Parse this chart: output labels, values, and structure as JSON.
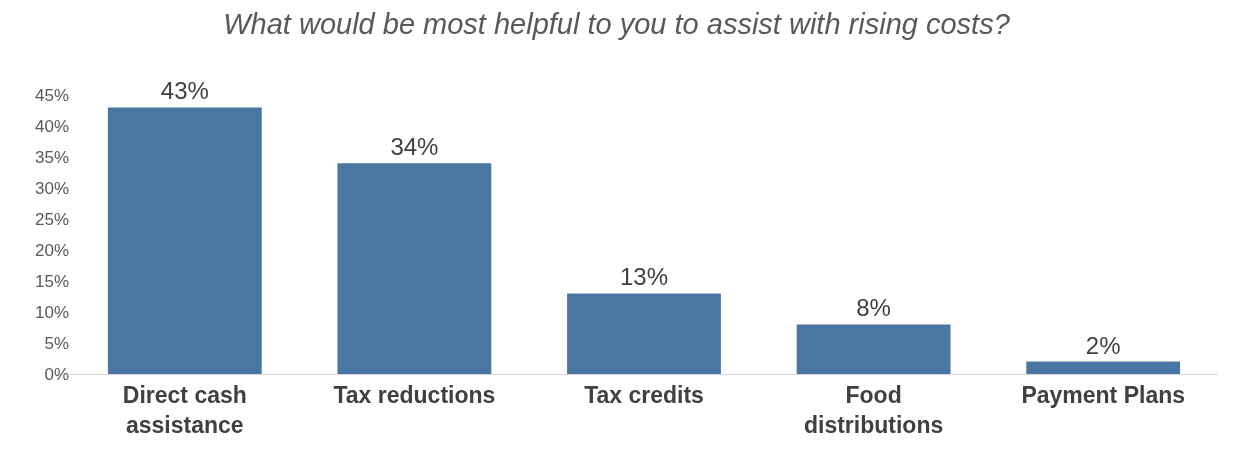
{
  "chart_data": {
    "type": "bar",
    "title": "What would be most helpful to you to assist with rising costs?",
    "categories": [
      "Direct cash\nassistance",
      "Tax reductions",
      "Tax credits",
      "Food\ndistributions",
      "Payment Plans"
    ],
    "values": [
      43,
      34,
      13,
      8,
      2
    ],
    "color": "#4a76a4",
    "value_labels": [
      "43%",
      "34%",
      "13%",
      "8%",
      "2%"
    ],
    "ylim": [
      0,
      45
    ],
    "yticks": [
      {
        "value": 0,
        "label": "0%"
      },
      {
        "value": 5,
        "label": "5%"
      },
      {
        "value": 10,
        "label": "10%"
      },
      {
        "value": 15,
        "label": "15%"
      },
      {
        "value": 20,
        "label": "20%"
      },
      {
        "value": 25,
        "label": "25%"
      },
      {
        "value": 30,
        "label": "30%"
      },
      {
        "value": 35,
        "label": "35%"
      },
      {
        "value": 40,
        "label": "40%"
      },
      {
        "value": 45,
        "label": "45%"
      }
    ],
    "grid": false,
    "legend": false
  }
}
